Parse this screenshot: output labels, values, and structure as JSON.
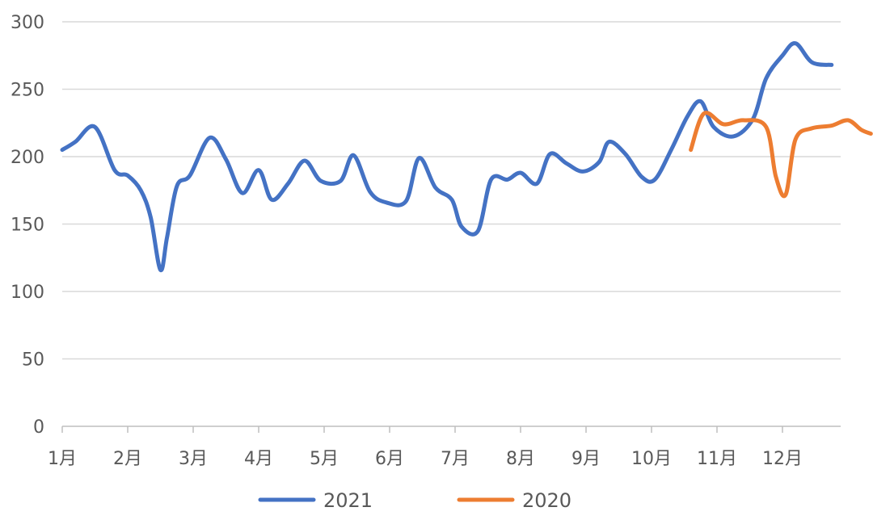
{
  "chart_data": {
    "type": "line",
    "title": "",
    "xlabel": "",
    "ylabel": "",
    "ylim": [
      0,
      300
    ],
    "yticks": [
      "0",
      "50",
      "100",
      "150",
      "200",
      "250",
      "300"
    ],
    "x_categories": [
      "1月",
      "2月",
      "3月",
      "4月",
      "5月",
      "6月",
      "7月",
      "8月",
      "9月",
      "10月",
      "11月",
      "12月"
    ],
    "grid": "horizontal",
    "legend": "bottom",
    "series": [
      {
        "name": "2021",
        "color": "#4472C4",
        "points": [
          [
            0.0,
            205
          ],
          [
            0.2,
            211
          ],
          [
            0.5,
            222
          ],
          [
            0.8,
            190
          ],
          [
            1.0,
            186
          ],
          [
            1.2,
            175
          ],
          [
            1.35,
            155
          ],
          [
            1.5,
            116
          ],
          [
            1.6,
            140
          ],
          [
            1.75,
            178
          ],
          [
            1.95,
            186
          ],
          [
            2.25,
            214
          ],
          [
            2.5,
            198
          ],
          [
            2.75,
            173
          ],
          [
            3.0,
            190
          ],
          [
            3.2,
            168
          ],
          [
            3.45,
            180
          ],
          [
            3.7,
            197
          ],
          [
            3.95,
            182
          ],
          [
            4.25,
            182
          ],
          [
            4.45,
            201
          ],
          [
            4.7,
            174
          ],
          [
            4.95,
            166
          ],
          [
            5.25,
            167
          ],
          [
            5.45,
            199
          ],
          [
            5.7,
            177
          ],
          [
            5.95,
            168
          ],
          [
            6.1,
            148
          ],
          [
            6.35,
            145
          ],
          [
            6.55,
            183
          ],
          [
            6.8,
            183
          ],
          [
            7.0,
            188
          ],
          [
            7.25,
            180
          ],
          [
            7.45,
            202
          ],
          [
            7.7,
            195
          ],
          [
            7.95,
            189
          ],
          [
            8.2,
            196
          ],
          [
            8.35,
            211
          ],
          [
            8.6,
            202
          ],
          [
            8.85,
            185
          ],
          [
            9.05,
            183
          ],
          [
            9.3,
            205
          ],
          [
            9.55,
            230
          ],
          [
            9.75,
            241
          ],
          [
            9.95,
            222
          ],
          [
            10.25,
            215
          ],
          [
            10.55,
            228
          ],
          [
            10.75,
            258
          ],
          [
            11.0,
            275
          ],
          [
            11.2,
            284
          ],
          [
            11.45,
            270
          ],
          [
            11.75,
            268
          ]
        ]
      },
      {
        "name": "2020",
        "color": "#ED7D31",
        "points": [
          [
            9.6,
            205
          ],
          [
            9.8,
            232
          ],
          [
            10.1,
            224
          ],
          [
            10.4,
            227
          ],
          [
            10.75,
            222
          ],
          [
            10.9,
            185
          ],
          [
            11.05,
            172
          ],
          [
            11.2,
            213
          ],
          [
            11.45,
            221
          ],
          [
            11.75,
            223
          ],
          [
            12.0,
            227
          ],
          [
            12.2,
            220
          ],
          [
            12.35,
            217
          ]
        ]
      }
    ]
  }
}
